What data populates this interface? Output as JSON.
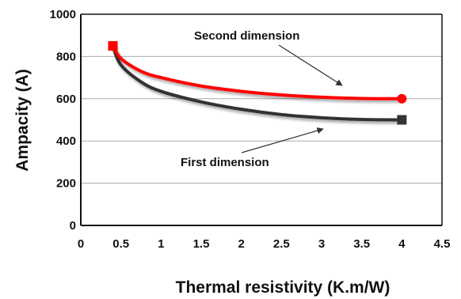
{
  "chart_data": {
    "type": "line",
    "title": "",
    "xlabel": "Thermal resistivity (K.m/W)",
    "ylabel": "Ampacity (A)",
    "xlim": [
      0,
      4.5
    ],
    "ylim": [
      0,
      1000
    ],
    "x_ticks": [
      0,
      0.5,
      1,
      1.5,
      2,
      2.5,
      3,
      3.5,
      4,
      4.5
    ],
    "x_tick_labels": [
      "0",
      "0.5",
      "1",
      "1.5",
      "2",
      "2.5",
      "3",
      "3.5",
      "4",
      "4.5"
    ],
    "y_ticks": [
      0,
      200,
      400,
      600,
      800,
      1000
    ],
    "y_tick_labels": [
      "0",
      "200",
      "400",
      "600",
      "800",
      "1000"
    ],
    "grid": "horizontal",
    "series": [
      {
        "name": "Second dimension",
        "color": "#ff0000",
        "marker": "circle",
        "x": [
          0.4,
          0.5,
          0.75,
          1.0,
          1.5,
          2.0,
          2.5,
          3.0,
          3.5,
          4.0
        ],
        "y": [
          850,
          790,
          730,
          700,
          660,
          635,
          618,
          607,
          601,
          600
        ]
      },
      {
        "name": "First dimension",
        "color": "#333333",
        "marker": "square",
        "x": [
          0.4,
          0.5,
          0.75,
          1.0,
          1.5,
          2.0,
          2.5,
          3.0,
          3.5,
          4.0
        ],
        "y": [
          850,
          760,
          680,
          635,
          585,
          550,
          525,
          510,
          502,
          500
        ]
      }
    ],
    "annotations": [
      {
        "text": "Second dimension",
        "series": "Second dimension",
        "point_x": 3.3,
        "point_y": 665
      },
      {
        "text": "First dimension",
        "series": "First dimension",
        "point_x": 3.0,
        "point_y": 455
      }
    ]
  }
}
